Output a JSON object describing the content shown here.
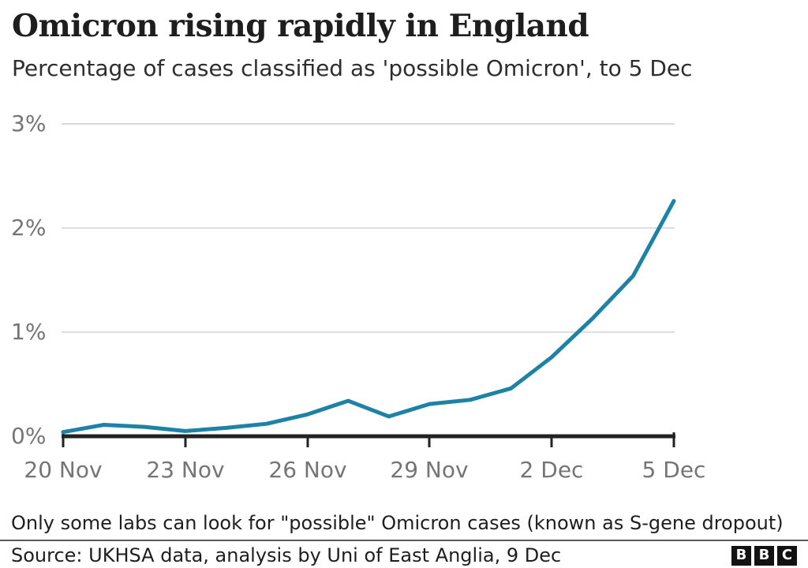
{
  "header": {
    "title": "Omicron rising rapidly in England",
    "subtitle": "Percentage of cases classified as 'possible Omicron', to 5 Dec"
  },
  "chart_data": {
    "type": "line",
    "title": "Omicron rising rapidly in England",
    "subtitle": "Percentage of cases classified as 'possible Omicron', to 5 Dec",
    "x": [
      "20 Nov",
      "21 Nov",
      "22 Nov",
      "23 Nov",
      "24 Nov",
      "25 Nov",
      "26 Nov",
      "27 Nov",
      "28 Nov",
      "29 Nov",
      "30 Nov",
      "1 Dec",
      "2 Dec",
      "3 Dec",
      "4 Dec",
      "5 Dec"
    ],
    "series": [
      {
        "name": "Percentage of cases classified as possible Omicron",
        "values": [
          0.04,
          0.11,
          0.09,
          0.05,
          0.08,
          0.12,
          0.21,
          0.34,
          0.19,
          0.31,
          0.35,
          0.46,
          0.76,
          1.13,
          1.54,
          2.26
        ]
      }
    ],
    "xlabel": "",
    "ylabel": "",
    "ylim": [
      0,
      3
    ],
    "y_unit": "%",
    "y_tick_labels": [
      "3%",
      "2%",
      "1%",
      "0%"
    ],
    "x_tick_labels": [
      "20 Nov",
      "23 Nov",
      "26 Nov",
      "29 Nov",
      "2 Dec",
      "5 Dec"
    ],
    "grid": "horizontal",
    "legend": "none",
    "line_color": "#1d82a6"
  },
  "footer": {
    "footnote": "Only some labs can look for \"possible\" Omicron cases (known as S-gene dropout)",
    "source": "Source: UKHSA data, analysis by Uni of East Anglia, 9 Dec",
    "logo_letters": [
      "B",
      "B",
      "C"
    ]
  },
  "colors": {
    "accent_line": "#1d82a6",
    "axis_text": "#757575",
    "gridline": "#dedede",
    "axis_line": "#222222",
    "text": "#1e1e1e",
    "background": "#ffffff"
  }
}
